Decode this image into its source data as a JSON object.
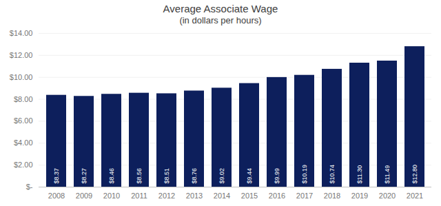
{
  "chart_data": {
    "type": "bar",
    "title": "Average Associate Wage",
    "subtitle": "(in dollars per hours)",
    "categories": [
      "2008",
      "2009",
      "2010",
      "2011",
      "2012",
      "2013",
      "2014",
      "2015",
      "2016",
      "2017",
      "2018",
      "2019",
      "2020",
      "2021"
    ],
    "values": [
      8.37,
      8.27,
      8.46,
      8.56,
      8.51,
      8.76,
      9.02,
      9.44,
      9.99,
      10.19,
      10.74,
      11.3,
      11.49,
      12.8
    ],
    "value_labels": [
      "$8.37",
      "$8.27",
      "$8.46",
      "$8.56",
      "$8.51",
      "$8.76",
      "$9.02",
      "$9.44",
      "$9.99",
      "$10.19",
      "$10.74",
      "$11.30",
      "$11.49",
      "$12.80"
    ],
    "data_labels": true,
    "color": "#0d1f5c",
    "ylim": [
      0,
      14
    ],
    "yticks": [
      {
        "value": 0,
        "label": "$-"
      },
      {
        "value": 2,
        "label": "$2.00"
      },
      {
        "value": 4,
        "label": "$4.00"
      },
      {
        "value": 6,
        "label": "$6.00"
      },
      {
        "value": 8,
        "label": "$8.00"
      },
      {
        "value": 10,
        "label": "$10.00"
      },
      {
        "value": 12,
        "label": "$12.00"
      },
      {
        "value": 14,
        "label": "$14.00"
      }
    ],
    "grid": true
  }
}
